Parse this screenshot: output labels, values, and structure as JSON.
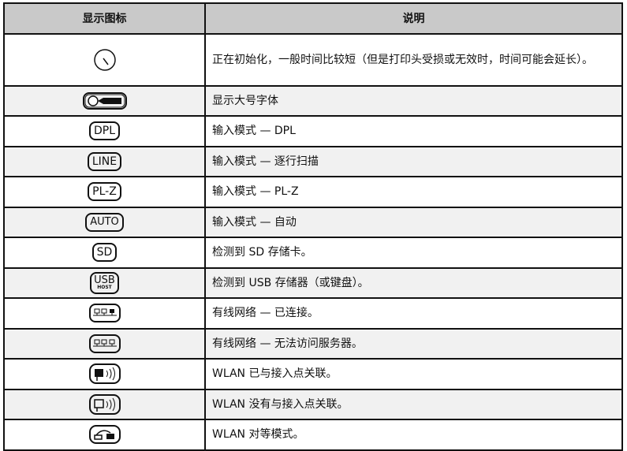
{
  "header": {
    "col_icon": "显示图标",
    "col_desc": "说明"
  },
  "rows": [
    {
      "icon": "clock-icon",
      "desc": "正在初始化，一般时间比较短（但是打印头受损或无效时，时间可能会延长）。"
    },
    {
      "icon": "large-font-icon",
      "desc": "显示大号字体"
    },
    {
      "icon": "dpl-mode-icon",
      "label": "DPL",
      "desc": "输入模式 — DPL"
    },
    {
      "icon": "line-mode-icon",
      "label": "LINE",
      "desc": "输入模式 — 逐行扫描"
    },
    {
      "icon": "plz-mode-icon",
      "label": "PL-Z",
      "desc": "输入模式 — PL-Z"
    },
    {
      "icon": "auto-mode-icon",
      "label": "AUTO",
      "desc": "输入模式 — 自动"
    },
    {
      "icon": "sd-card-icon",
      "label": "SD",
      "desc": "检测到 SD 存储卡。"
    },
    {
      "icon": "usb-host-icon",
      "label": "USB",
      "sublabel": "HOST",
      "desc": "检测到 USB 存储器（或键盘）。"
    },
    {
      "icon": "wired-network-connected-icon",
      "desc": "有线网络 — 已连接。"
    },
    {
      "icon": "wired-network-unreachable-icon",
      "desc": "有线网络 — 无法访问服务器。"
    },
    {
      "icon": "wlan-associated-icon",
      "desc": "WLAN 已与接入点关联。"
    },
    {
      "icon": "wlan-not-associated-icon",
      "desc": "WLAN 没有与接入点关联。"
    },
    {
      "icon": "wlan-adhoc-icon",
      "desc": "WLAN 对等模式。"
    }
  ]
}
